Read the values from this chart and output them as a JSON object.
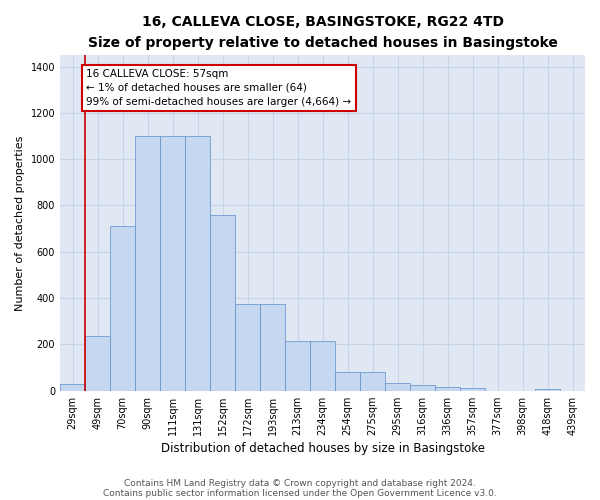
{
  "title_line1": "16, CALLEVA CLOSE, BASINGSTOKE, RG22 4TD",
  "title_line2": "Size of property relative to detached houses in Basingstoke",
  "xlabel": "Distribution of detached houses by size in Basingstoke",
  "ylabel": "Number of detached properties",
  "bin_labels": [
    "29sqm",
    "49sqm",
    "70sqm",
    "90sqm",
    "111sqm",
    "131sqm",
    "152sqm",
    "172sqm",
    "193sqm",
    "213sqm",
    "234sqm",
    "254sqm",
    "275sqm",
    "295sqm",
    "316sqm",
    "336sqm",
    "357sqm",
    "377sqm",
    "398sqm",
    "418sqm",
    "439sqm"
  ],
  "bar_values": [
    30,
    235,
    710,
    1100,
    1100,
    1100,
    760,
    375,
    375,
    215,
    215,
    80,
    80,
    35,
    25,
    15,
    12,
    0,
    0,
    8,
    0
  ],
  "bar_color": "#c5d8f0",
  "bar_edgecolor": "#5b8fc9",
  "vline_color": "#cc0000",
  "annotation_text": "16 CALLEVA CLOSE: 57sqm\n← 1% of detached houses are smaller (64)\n99% of semi-detached houses are larger (4,664) →",
  "annotation_box_color": "#cc0000",
  "annotation_facecolor": "white",
  "ylim": [
    0,
    1450
  ],
  "yticks": [
    0,
    200,
    400,
    600,
    800,
    1000,
    1200,
    1400
  ],
  "grid_color": "#c8d4e8",
  "background_color": "#e0e8f4",
  "footnote_line1": "Contains HM Land Registry data © Crown copyright and database right 2024.",
  "footnote_line2": "Contains public sector information licensed under the Open Government Licence v3.0.",
  "title_fontsize": 10,
  "subtitle_fontsize": 9,
  "xlabel_fontsize": 8.5,
  "ylabel_fontsize": 8,
  "tick_fontsize": 7,
  "annotation_fontsize": 7.5,
  "footnote_fontsize": 6.5
}
